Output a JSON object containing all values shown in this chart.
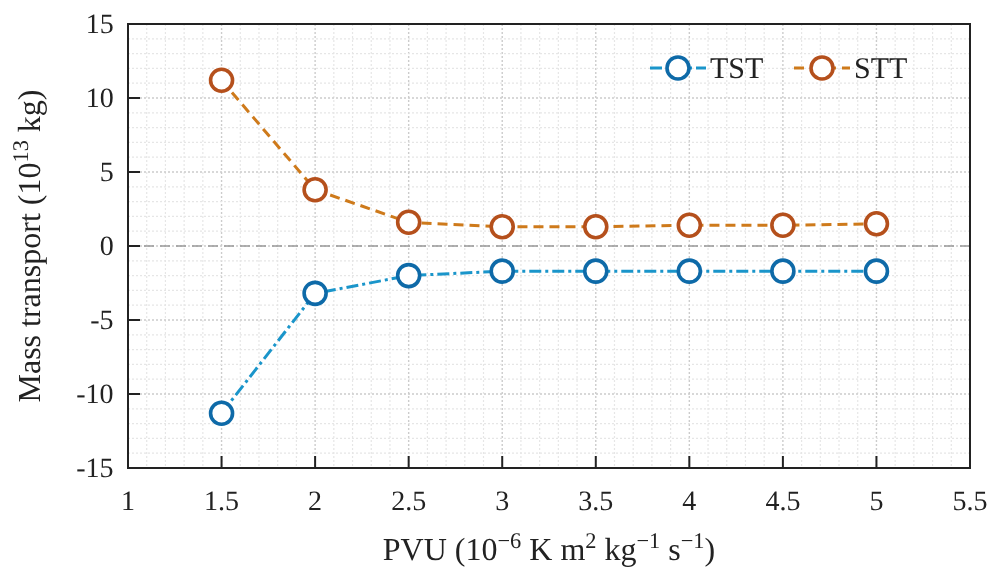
{
  "chart_data": {
    "type": "line",
    "xlabel": "PVU (10$^{−6}$ K m$^{2}$ kg$^{−1}$ s$^{−1}$)",
    "ylabel": "Mass transport (10$^{13}$ kg)",
    "x": [
      1.5,
      2,
      2.5,
      3,
      3.5,
      4,
      4.5,
      5
    ],
    "series": [
      {
        "name": "TST",
        "color": "#0e6aa8",
        "values": [
          -11.3,
          -3.2,
          -2.0,
          -1.7,
          -1.7,
          -1.7,
          -1.7,
          -1.7
        ]
      },
      {
        "name": "STT",
        "color": "#b5501c",
        "values": [
          11.2,
          3.8,
          1.6,
          1.3,
          1.3,
          1.4,
          1.4,
          1.5
        ]
      }
    ],
    "xlim": [
      1,
      5.5
    ],
    "xticks": [
      1,
      1.5,
      2,
      2.5,
      3,
      3.5,
      4,
      4.5,
      5,
      5.5
    ],
    "ylim": [
      -15,
      15
    ],
    "yticks": [
      -15,
      -10,
      -5,
      0,
      5,
      10,
      15
    ],
    "ref_lines": [
      {
        "axis": "y",
        "value": 0,
        "color": "#999999",
        "line_style": "dashed"
      }
    ],
    "grid": true,
    "legend": "top right",
    "marker": "circle",
    "line_style": "dashed"
  }
}
